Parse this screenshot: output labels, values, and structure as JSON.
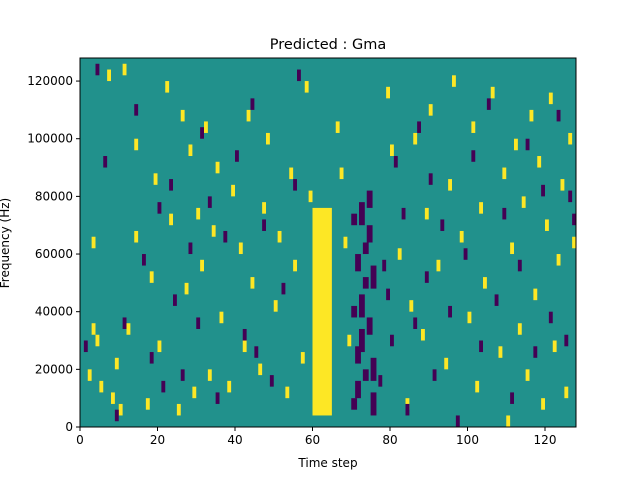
{
  "chart_data": {
    "type": "heatmap",
    "title": "Predicted : Gma",
    "xlabel": "Time step",
    "ylabel": "Frequency (Hz)",
    "xlim": [
      0,
      128
    ],
    "ylim": [
      0,
      128000
    ],
    "x_ticks": [
      0,
      20,
      40,
      60,
      80,
      100,
      120
    ],
    "y_ticks": [
      0,
      20000,
      40000,
      60000,
      80000,
      100000,
      120000
    ],
    "x_tick_labels": [
      "0",
      "20",
      "40",
      "60",
      "80",
      "100",
      "120"
    ],
    "y_tick_labels": [
      "0",
      "20000",
      "40000",
      "60000",
      "80000",
      "100000",
      "120000"
    ],
    "grid": false,
    "colormap": "viridis",
    "colors": {
      "background": "#21918c",
      "high": "#fde725",
      "low": "#440154"
    },
    "description_of_values": "three-level map: background (0), high (yellow), low (dark purple)",
    "bright_band": {
      "x_range": [
        60,
        65
      ],
      "y_range": [
        4000,
        76000
      ]
    },
    "dark_band": {
      "x_range": [
        70,
        76
      ],
      "y_range": [
        8000,
        84000
      ]
    },
    "high_cells": [
      [
        2,
        18000
      ],
      [
        3,
        34000
      ],
      [
        3,
        64000
      ],
      [
        4,
        30000
      ],
      [
        5,
        14000
      ],
      [
        7,
        122000
      ],
      [
        8,
        10000
      ],
      [
        9,
        22000
      ],
      [
        10,
        6000
      ],
      [
        11,
        124000
      ],
      [
        12,
        34000
      ],
      [
        14,
        98000
      ],
      [
        14,
        66000
      ],
      [
        17,
        8000
      ],
      [
        18,
        52000
      ],
      [
        19,
        86000
      ],
      [
        20,
        28000
      ],
      [
        22,
        118000
      ],
      [
        23,
        72000
      ],
      [
        25,
        6000
      ],
      [
        26,
        108000
      ],
      [
        27,
        48000
      ],
      [
        28,
        96000
      ],
      [
        29,
        12000
      ],
      [
        30,
        74000
      ],
      [
        31,
        56000
      ],
      [
        32,
        104000
      ],
      [
        33,
        18000
      ],
      [
        34,
        68000
      ],
      [
        35,
        90000
      ],
      [
        36,
        38000
      ],
      [
        38,
        14000
      ],
      [
        39,
        82000
      ],
      [
        41,
        62000
      ],
      [
        42,
        28000
      ],
      [
        43,
        108000
      ],
      [
        44,
        50000
      ],
      [
        46,
        20000
      ],
      [
        47,
        76000
      ],
      [
        48,
        100000
      ],
      [
        50,
        42000
      ],
      [
        51,
        66000
      ],
      [
        53,
        12000
      ],
      [
        54,
        88000
      ],
      [
        55,
        56000
      ],
      [
        57,
        24000
      ],
      [
        58,
        118000
      ],
      [
        59,
        80000
      ],
      [
        66,
        104000
      ],
      [
        67,
        88000
      ],
      [
        68,
        64000
      ],
      [
        69,
        30000
      ],
      [
        79,
        116000
      ],
      [
        80,
        96000
      ],
      [
        82,
        60000
      ],
      [
        84,
        8000
      ],
      [
        85,
        42000
      ],
      [
        86,
        100000
      ],
      [
        88,
        32000
      ],
      [
        89,
        74000
      ],
      [
        90,
        110000
      ],
      [
        92,
        56000
      ],
      [
        94,
        22000
      ],
      [
        95,
        84000
      ],
      [
        96,
        120000
      ],
      [
        98,
        66000
      ],
      [
        100,
        38000
      ],
      [
        101,
        104000
      ],
      [
        102,
        14000
      ],
      [
        103,
        76000
      ],
      [
        104,
        50000
      ],
      [
        106,
        116000
      ],
      [
        108,
        26000
      ],
      [
        109,
        88000
      ],
      [
        110,
        2000
      ],
      [
        111,
        62000
      ],
      [
        112,
        98000
      ],
      [
        113,
        34000
      ],
      [
        114,
        78000
      ],
      [
        115,
        18000
      ],
      [
        116,
        108000
      ],
      [
        117,
        46000
      ],
      [
        118,
        92000
      ],
      [
        119,
        8000
      ],
      [
        120,
        70000
      ],
      [
        121,
        114000
      ],
      [
        122,
        28000
      ],
      [
        123,
        58000
      ],
      [
        124,
        84000
      ],
      [
        125,
        12000
      ],
      [
        126,
        100000
      ],
      [
        127,
        64000
      ]
    ],
    "low_cells": [
      [
        1,
        28000
      ],
      [
        4,
        124000
      ],
      [
        6,
        92000
      ],
      [
        9,
        4000
      ],
      [
        11,
        36000
      ],
      [
        14,
        110000
      ],
      [
        16,
        58000
      ],
      [
        18,
        24000
      ],
      [
        20,
        76000
      ],
      [
        21,
        14000
      ],
      [
        23,
        84000
      ],
      [
        24,
        44000
      ],
      [
        26,
        18000
      ],
      [
        28,
        62000
      ],
      [
        30,
        36000
      ],
      [
        31,
        102000
      ],
      [
        33,
        78000
      ],
      [
        35,
        10000
      ],
      [
        37,
        66000
      ],
      [
        40,
        94000
      ],
      [
        42,
        32000
      ],
      [
        44,
        112000
      ],
      [
        45,
        26000
      ],
      [
        47,
        70000
      ],
      [
        49,
        16000
      ],
      [
        52,
        48000
      ],
      [
        55,
        84000
      ],
      [
        56,
        122000
      ],
      [
        77,
        16000
      ],
      [
        78,
        56000
      ],
      [
        79,
        46000
      ],
      [
        80,
        30000
      ],
      [
        81,
        92000
      ],
      [
        83,
        74000
      ],
      [
        84,
        6000
      ],
      [
        86,
        36000
      ],
      [
        87,
        104000
      ],
      [
        89,
        52000
      ],
      [
        90,
        86000
      ],
      [
        91,
        18000
      ],
      [
        93,
        70000
      ],
      [
        95,
        40000
      ],
      [
        97,
        2000
      ],
      [
        99,
        60000
      ],
      [
        101,
        94000
      ],
      [
        103,
        28000
      ],
      [
        105,
        112000
      ],
      [
        107,
        44000
      ],
      [
        109,
        74000
      ],
      [
        111,
        10000
      ],
      [
        113,
        56000
      ],
      [
        115,
        98000
      ],
      [
        117,
        26000
      ],
      [
        119,
        82000
      ],
      [
        121,
        38000
      ],
      [
        123,
        108000
      ],
      [
        125,
        30000
      ],
      [
        126,
        80000
      ],
      [
        127,
        72000
      ]
    ]
  }
}
